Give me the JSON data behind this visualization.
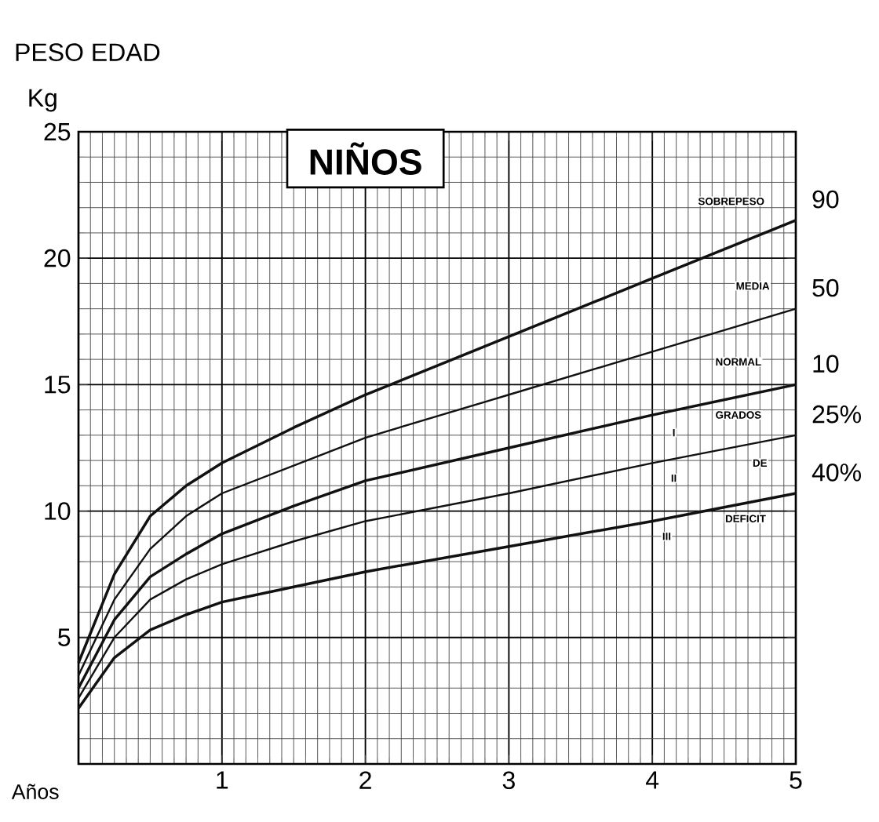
{
  "chart_data": {
    "type": "line",
    "title": "NIÑOS",
    "xlabel": "Años",
    "ylabel": "Kg",
    "x": [
      0,
      0.25,
      0.5,
      0.75,
      1,
      1.5,
      2,
      3,
      4,
      5
    ],
    "series": [
      {
        "name": "90",
        "color": "#111111",
        "values": [
          4.0,
          7.5,
          9.8,
          11.0,
          11.9,
          13.3,
          14.6,
          16.9,
          19.2,
          21.5
        ]
      },
      {
        "name": "50",
        "color": "#111111",
        "values": [
          3.5,
          6.5,
          8.5,
          9.8,
          10.7,
          11.8,
          12.9,
          14.6,
          16.3,
          18.0
        ]
      },
      {
        "name": "10",
        "color": "#111111",
        "values": [
          3.0,
          5.7,
          7.4,
          8.3,
          9.1,
          10.2,
          11.2,
          12.5,
          13.8,
          15.0
        ]
      },
      {
        "name": "25%",
        "color": "#111111",
        "values": [
          2.6,
          5.0,
          6.5,
          7.3,
          7.9,
          8.8,
          9.6,
          10.7,
          11.9,
          13.0
        ]
      },
      {
        "name": "40%",
        "color": "#111111",
        "values": [
          2.2,
          4.2,
          5.3,
          5.9,
          6.4,
          7.0,
          7.6,
          8.6,
          9.6,
          10.7
        ]
      }
    ],
    "xlim": [
      0,
      5
    ],
    "xticks": [
      {
        "value": 0,
        "label": null
      },
      1,
      2,
      3,
      4,
      5
    ],
    "ylim": [
      0,
      25
    ],
    "yticks": [
      {
        "value": 0,
        "label": null
      },
      5,
      10,
      15,
      20,
      25
    ],
    "grid": true,
    "legend": false,
    "marker": "none",
    "line_style": "solid",
    "annotations": [
      "PESO EDAD",
      "SOBREPESO",
      "MEDIA",
      "NORMAL",
      "GRADOS",
      "DE",
      "DEFICIT",
      "I",
      "II",
      "III"
    ]
  }
}
